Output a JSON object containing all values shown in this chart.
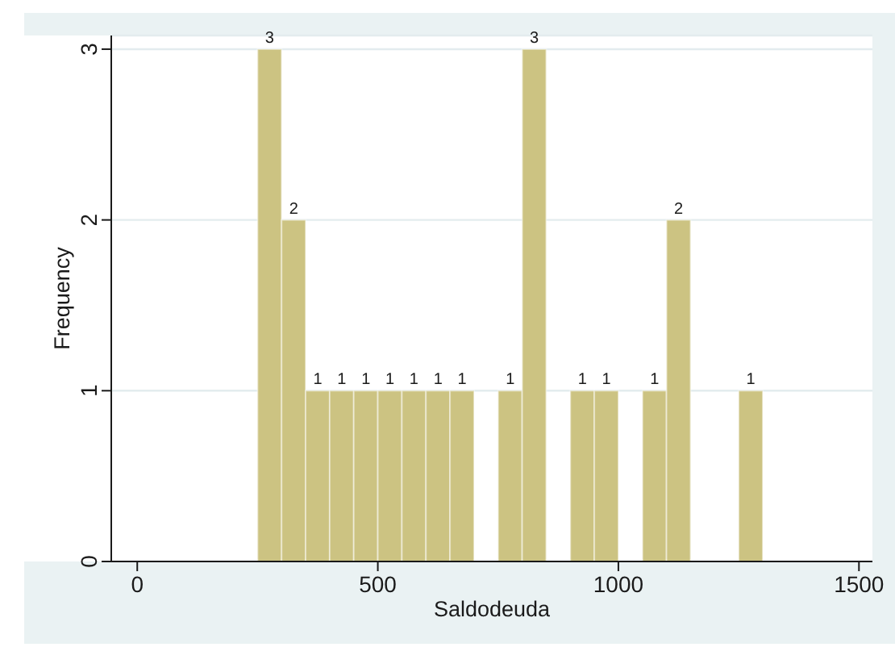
{
  "chart_data": {
    "type": "histogram",
    "bins": [
      250,
      300,
      350,
      400,
      450,
      500,
      550,
      600,
      650,
      700,
      750,
      800,
      850,
      900,
      950,
      1000,
      1050,
      1100,
      1150,
      1200,
      1250,
      1300
    ],
    "values": [
      3,
      2,
      1,
      1,
      1,
      1,
      1,
      1,
      1,
      0,
      1,
      3,
      0,
      1,
      1,
      0,
      1,
      2,
      0,
      0,
      1
    ],
    "value_labels": [
      "3",
      "2",
      "1",
      "1",
      "1",
      "1",
      "1",
      "1",
      "1",
      null,
      "1",
      "3",
      null,
      "1",
      "1",
      null,
      "1",
      "2",
      null,
      null,
      "1"
    ],
    "color": "#ccc382",
    "xlabel": "Saldodeuda",
    "ylabel": "Frequency",
    "xlim": [
      -54,
      1528
    ],
    "xticks": [
      0,
      500,
      1000,
      1500
    ],
    "ylim": [
      0,
      3.08
    ],
    "yticks": [
      0,
      1,
      2,
      3
    ],
    "grid": "y"
  }
}
